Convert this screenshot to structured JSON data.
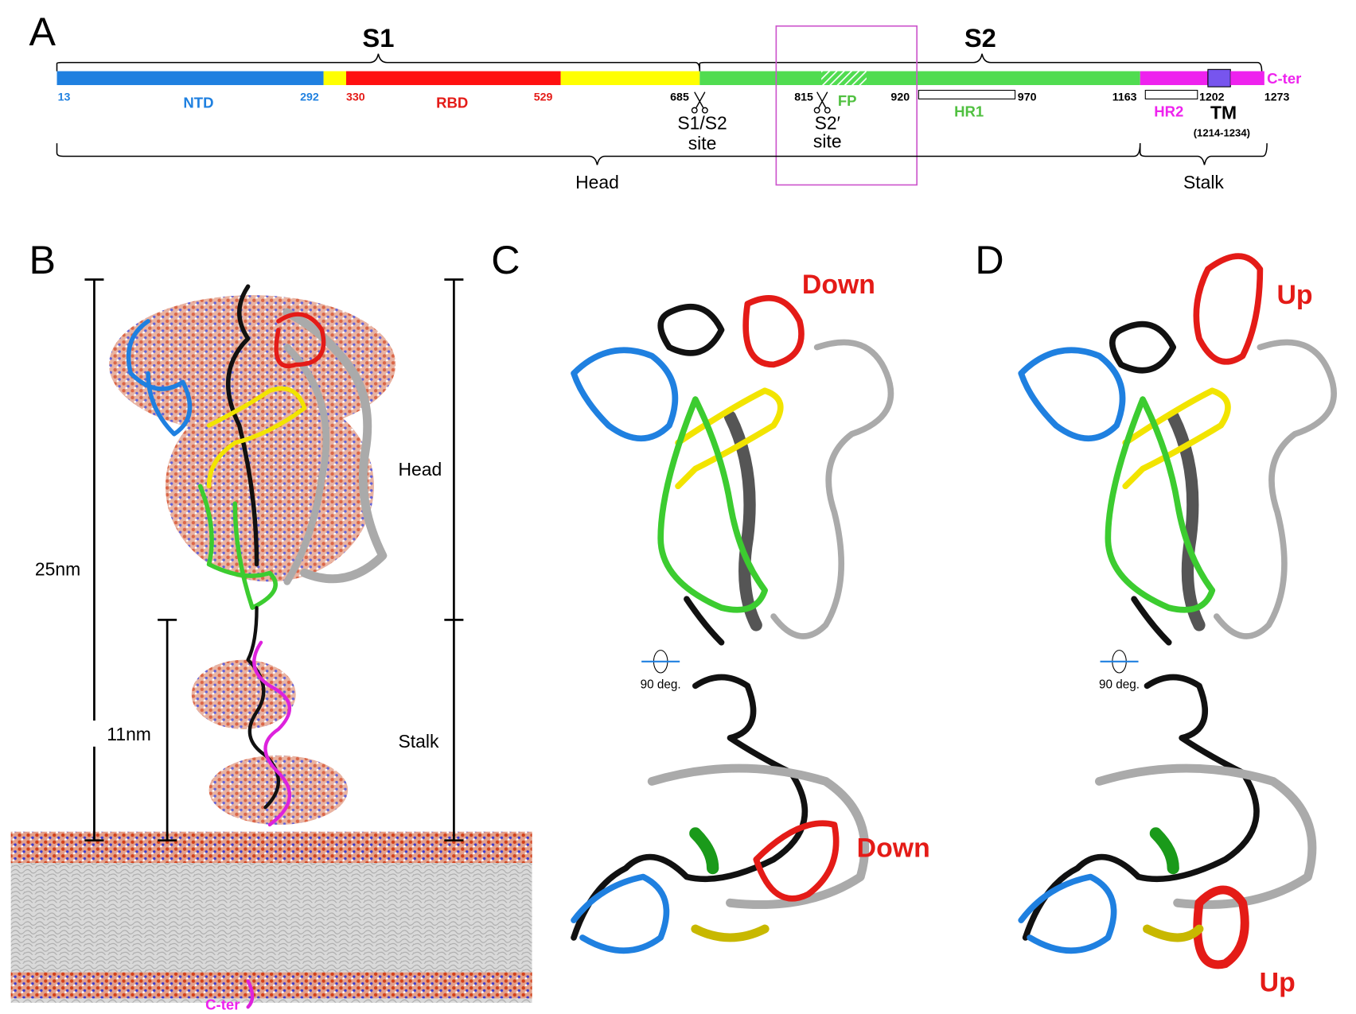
{
  "panel_a": {
    "label": "A",
    "s1": "S1",
    "s2": "S2",
    "c_ter": "C-ter",
    "residues": [
      "13",
      "292",
      "330",
      "529",
      "685",
      "815",
      "920",
      "970",
      "1163",
      "1202",
      "1273"
    ],
    "domains": {
      "ntd": "NTD",
      "rbd": "RBD",
      "fp": "FP",
      "hr1": "HR1",
      "hr2": "HR2",
      "tm": "TM",
      "tm_range": "(1214-1234)"
    },
    "sites": {
      "s1s2": [
        "S1/S2",
        "site"
      ],
      "s2prime": [
        "S2′",
        "site"
      ]
    },
    "head": "Head",
    "stalk": "Stalk"
  },
  "panel_b": {
    "label": "B",
    "scale_long": "25nm",
    "scale_short": "11nm",
    "head": "Head",
    "stalk": "Stalk",
    "c_ter": "C-ter"
  },
  "panel_c": {
    "label": "C",
    "state_top": "Down",
    "rotation": "90 deg.",
    "state_bottom": "Down"
  },
  "panel_d": {
    "label": "D",
    "state_top": "Up",
    "rotation": "90 deg.",
    "state_bottom": "Up"
  }
}
